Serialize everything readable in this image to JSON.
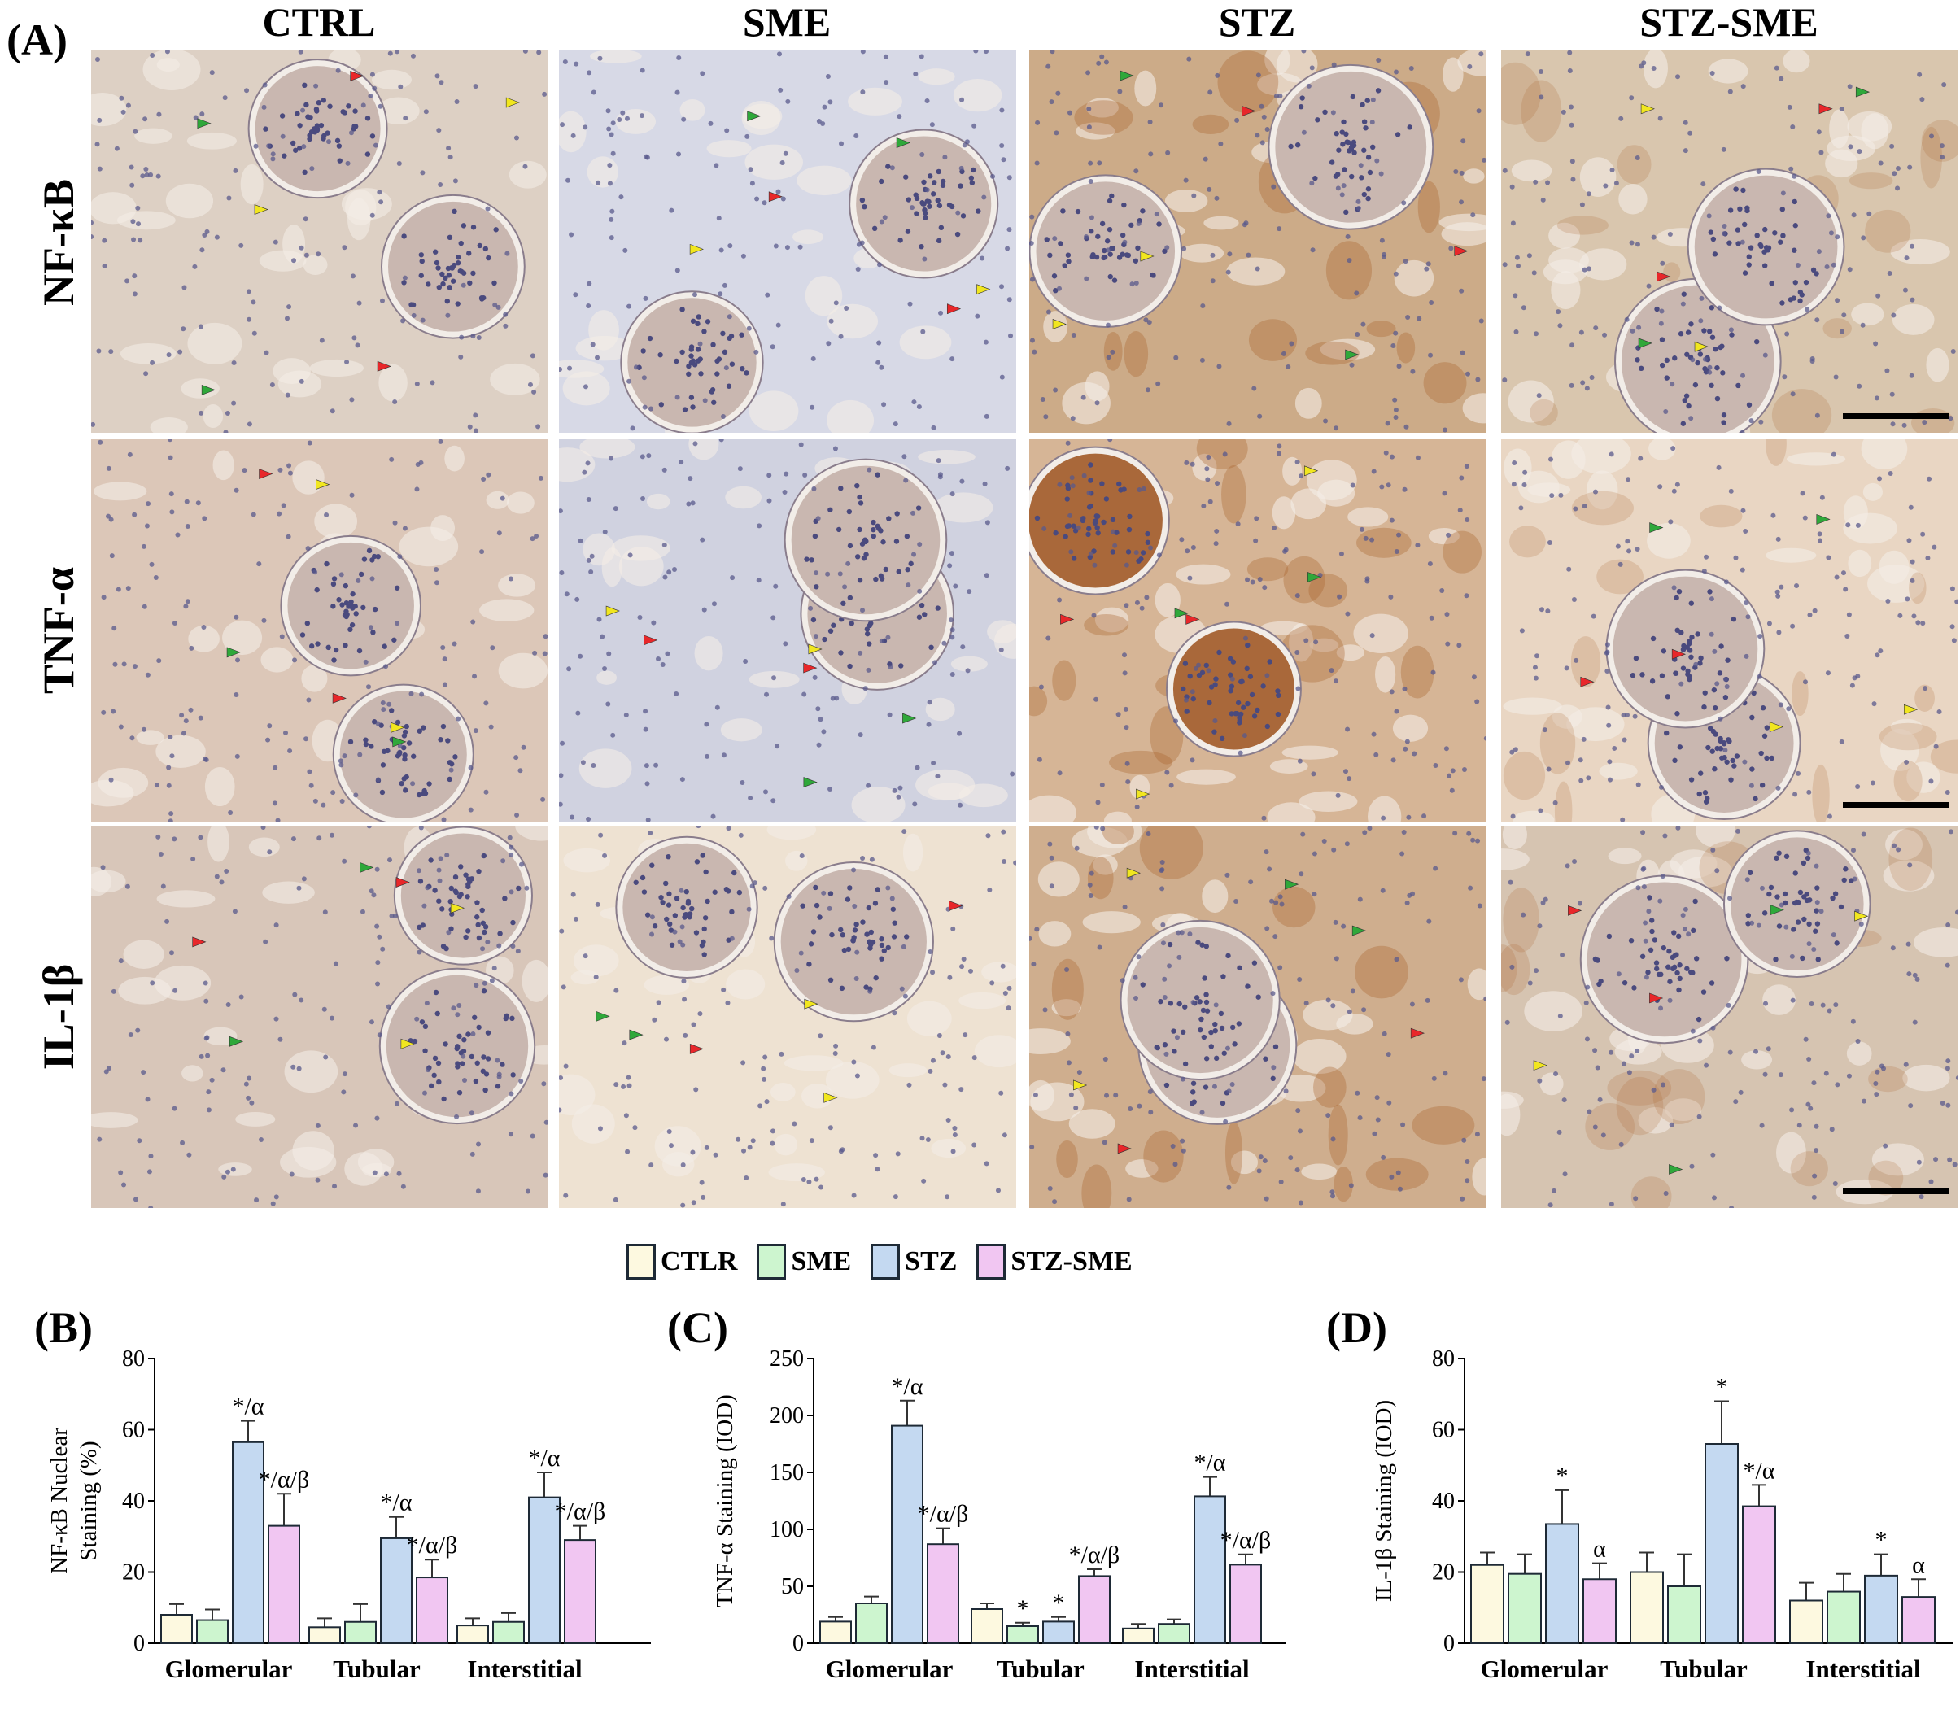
{
  "panel_labels": {
    "a": "(A)",
    "b": "(B)",
    "c": "(C)",
    "d": "(D)"
  },
  "column_titles": [
    "CTRL",
    "SME",
    "STZ",
    "STZ-SME"
  ],
  "row_titles": [
    "NF-κB",
    "TNF-α",
    "IL-1β"
  ],
  "legend": [
    {
      "label": "CTLR",
      "color": "#fdf9e0"
    },
    {
      "label": "SME",
      "color": "#cdf5cf"
    },
    {
      "label": "STZ",
      "color": "#c4d9f1"
    },
    {
      "label": "STZ-SME",
      "color": "#f1c6f2"
    }
  ],
  "tissue_colors": {
    "bg": [
      "#ddd0c4",
      "#d7d9e6",
      "#ccab88",
      "#d9c6ae",
      "#dcc7b8",
      "#d0d2e0",
      "#d6b596",
      "#e9d6c3",
      "#d8c6b9",
      "#eee2d2",
      "#cfae8e",
      "#d6c4b1"
    ],
    "stain_brown": "#a8652e",
    "nuclei": "#4a4a7e"
  },
  "chart_data": [
    {
      "type": "bar",
      "panel": "(B)",
      "ylabel": "NF-κB Nuclear Staining (%)",
      "ylabel_lines": [
        "NF-κB Nuclear",
        "Staining (%)"
      ],
      "ylim": [
        0,
        80
      ],
      "yticks": [
        0,
        20,
        40,
        60,
        80
      ],
      "categories": [
        "Glomerular",
        "Tubular",
        "Interstitial"
      ],
      "series": [
        {
          "name": "CTLR",
          "values": [
            8,
            4.5,
            5
          ],
          "errors": [
            3,
            2.5,
            2
          ]
        },
        {
          "name": "SME",
          "values": [
            6.5,
            6,
            6
          ],
          "errors": [
            3,
            5,
            2.5
          ]
        },
        {
          "name": "STZ",
          "values": [
            56.5,
            29.5,
            41
          ],
          "errors": [
            6,
            6,
            7
          ]
        },
        {
          "name": "STZ-SME",
          "values": [
            33,
            18.5,
            29
          ],
          "errors": [
            9,
            5,
            4
          ]
        }
      ],
      "annotations": [
        [
          [
            "",
            "",
            "*/α",
            "*/α/β"
          ],
          [
            "",
            "",
            "*/α",
            "*/α/β"
          ],
          [
            "",
            "",
            "*/α",
            "*/α/β"
          ]
        ]
      ]
    },
    {
      "type": "bar",
      "panel": "(C)",
      "ylabel": "TNF-α Staining (IOD)",
      "ylim": [
        0,
        250
      ],
      "yticks": [
        0,
        50,
        100,
        150,
        200,
        250
      ],
      "categories": [
        "Glomerular",
        "Tubular",
        "Interstitial"
      ],
      "series": [
        {
          "name": "CTLR",
          "values": [
            19,
            30,
            13
          ],
          "errors": [
            4,
            5,
            4
          ]
        },
        {
          "name": "SME",
          "values": [
            35,
            15,
            17
          ],
          "errors": [
            6,
            3,
            4
          ]
        },
        {
          "name": "STZ",
          "values": [
            191,
            19,
            129
          ],
          "errors": [
            22,
            4,
            17
          ]
        },
        {
          "name": "STZ-SME",
          "values": [
            87,
            59,
            69
          ],
          "errors": [
            14,
            6,
            9
          ]
        }
      ],
      "annotations": [
        [
          [
            "",
            "",
            "*/α",
            "*/α/β"
          ],
          [
            "",
            "*",
            "*",
            "*/α/β"
          ],
          [
            "",
            "",
            "*/α",
            "*/α/β"
          ]
        ]
      ]
    },
    {
      "type": "bar",
      "panel": "(D)",
      "ylabel": "IL-1β Staining (IOD)",
      "ylim": [
        0,
        80
      ],
      "yticks": [
        0,
        20,
        40,
        60,
        80
      ],
      "categories": [
        "Glomerular",
        "Tubular",
        "Interstitial"
      ],
      "series": [
        {
          "name": "CTLR",
          "values": [
            22,
            20,
            12
          ],
          "errors": [
            3.5,
            5.5,
            5
          ]
        },
        {
          "name": "SME",
          "values": [
            19.5,
            16,
            14.5
          ],
          "errors": [
            5.5,
            9,
            5
          ]
        },
        {
          "name": "STZ",
          "values": [
            33.5,
            56,
            19
          ],
          "errors": [
            9.5,
            12,
            6
          ]
        },
        {
          "name": "STZ-SME",
          "values": [
            18,
            38.5,
            13
          ],
          "errors": [
            4.5,
            6,
            5
          ]
        }
      ],
      "annotations": [
        [
          [
            "",
            "",
            "*",
            "α"
          ],
          [
            "",
            "",
            "*",
            "*/α"
          ],
          [
            "",
            "",
            "*",
            "α"
          ]
        ]
      ]
    }
  ]
}
